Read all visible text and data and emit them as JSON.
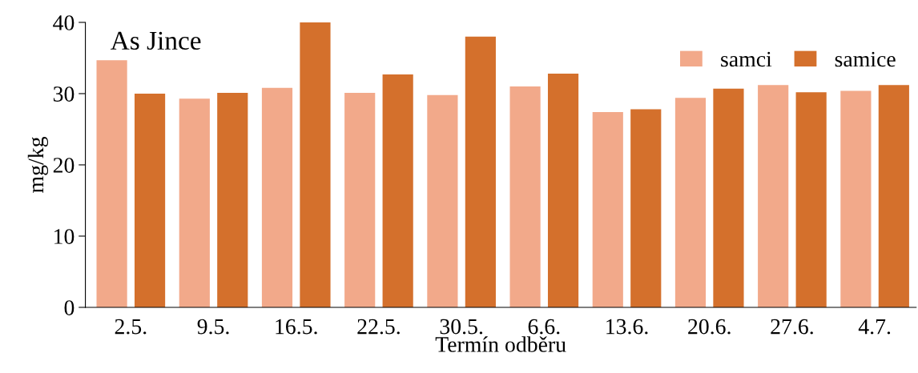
{
  "chart_data": {
    "type": "bar",
    "title": "As Jince",
    "xlabel": "Termín odběru",
    "ylabel": "mg/kg",
    "categories": [
      "2.5.",
      "9.5.",
      "16.5.",
      "22.5.",
      "30.5.",
      "6.6.",
      "13.6.",
      "20.6.",
      "27.6.",
      "4.7."
    ],
    "series": [
      {
        "name": "samci",
        "color": "#f2a98a",
        "values": [
          34.7,
          29.3,
          30.8,
          30.1,
          29.8,
          31.0,
          27.4,
          29.4,
          31.2,
          30.4
        ]
      },
      {
        "name": "samice",
        "color": "#d4702c",
        "values": [
          30.0,
          30.1,
          40.0,
          32.7,
          38.0,
          32.8,
          27.8,
          30.7,
          30.2,
          31.2
        ]
      }
    ],
    "ylim": [
      0,
      40
    ],
    "yticks": [
      0,
      10,
      20,
      30,
      40
    ],
    "grid": false,
    "legend": "top right"
  }
}
